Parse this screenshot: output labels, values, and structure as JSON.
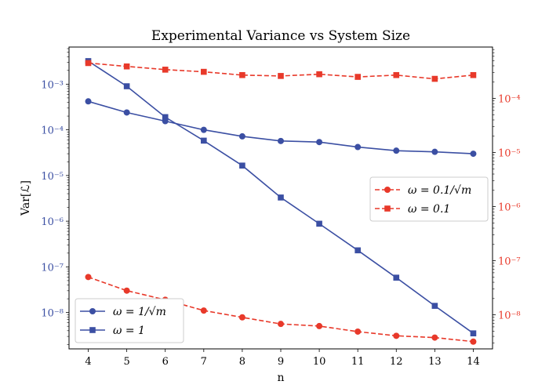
{
  "chart_data": {
    "type": "line",
    "title": "Experimental Variance vs System Size",
    "xlabel": "n",
    "ylabel": "Var[ℒ]",
    "x": [
      4,
      5,
      6,
      7,
      8,
      9,
      10,
      11,
      12,
      13,
      14
    ],
    "x_ticks": [
      "4",
      "5",
      "6",
      "7",
      "8",
      "9",
      "10",
      "11",
      "12",
      "13",
      "14"
    ],
    "xlim": [
      3.5,
      14.5
    ],
    "y_left": {
      "scale": "log",
      "lim": [
        1.6e-09,
        0.0065
      ],
      "ticks": [
        {
          "value": 1e-08,
          "label": "10⁻⁸"
        },
        {
          "value": 1e-07,
          "label": "10⁻⁷"
        },
        {
          "value": 1e-06,
          "label": "10⁻⁶"
        },
        {
          "value": 1e-05,
          "label": "10⁻⁵"
        },
        {
          "value": 0.0001,
          "label": "10⁻⁴"
        },
        {
          "value": 0.001,
          "label": "10⁻³"
        }
      ],
      "color": "#3b4fa3"
    },
    "y_right": {
      "scale": "log",
      "lim": [
        2.35e-09,
        0.00089
      ],
      "ticks": [
        {
          "value": 1e-08,
          "label": "10⁻⁸"
        },
        {
          "value": 1e-07,
          "label": "10⁻⁷"
        },
        {
          "value": 1e-06,
          "label": "10⁻⁶"
        },
        {
          "value": 1e-05,
          "label": "10⁻⁵"
        },
        {
          "value": 0.0001,
          "label": "10⁻⁴"
        }
      ],
      "color": "#e8392a"
    },
    "series": [
      {
        "name": "ω = 1/√m",
        "axis": "left",
        "color": "#3b4fa3",
        "dashed": false,
        "marker": "circle",
        "values": [
          0.00042,
          0.00024,
          0.000155,
          0.0001,
          7.2e-05,
          5.7e-05,
          5.4e-05,
          4.2e-05,
          3.5e-05,
          3.3e-05,
          3e-05
        ]
      },
      {
        "name": "ω = 1",
        "axis": "left",
        "color": "#3b4fa3",
        "dashed": false,
        "marker": "square",
        "values": [
          0.0032,
          0.0009,
          0.00019,
          5.8e-05,
          1.65e-05,
          3.3e-06,
          8.8e-07,
          2.3e-07,
          5.8e-08,
          1.4e-08,
          3.5e-09
        ]
      },
      {
        "name": "ω = 0.1/√m",
        "axis": "right",
        "color": "#e8392a",
        "dashed": true,
        "marker": "circle",
        "values": [
          5e-08,
          2.8e-08,
          1.9e-08,
          1.2e-08,
          9e-09,
          6.8e-09,
          6.2e-09,
          4.9e-09,
          4.1e-09,
          3.8e-09,
          3.2e-09
        ]
      },
      {
        "name": "ω = 0.1",
        "axis": "right",
        "color": "#e8392a",
        "dashed": true,
        "marker": "square",
        "values": [
          0.00045,
          0.00039,
          0.00034,
          0.00031,
          0.00027,
          0.00026,
          0.00028,
          0.00025,
          0.00027,
          0.00023,
          0.00027
        ]
      }
    ],
    "legends": [
      {
        "placement": "bottom-left",
        "entries": [
          "ω = 1/√m",
          "ω = 1"
        ]
      },
      {
        "placement": "center-right",
        "entries": [
          "ω = 0.1/√m",
          "ω = 0.1"
        ]
      }
    ],
    "grid": false
  }
}
